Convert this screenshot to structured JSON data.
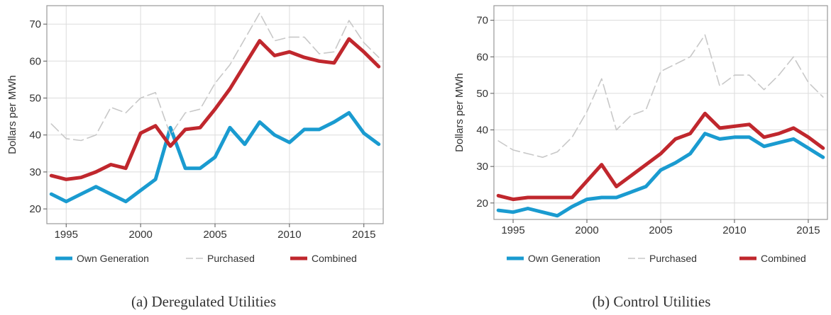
{
  "colors": {
    "own_generation": "#1a9bd0",
    "purchased": "#c8c8c8",
    "combined": "#c0272d",
    "grid": "#dcdcdc",
    "frame": "#9a9a9a"
  },
  "chart_data": [
    {
      "type": "line",
      "caption": "(a) Deregulated Utilities",
      "ylabel": "Dollars per MWh",
      "xlim": [
        1993.7,
        2016.3
      ],
      "ylim": [
        16,
        75
      ],
      "xticks": [
        1995,
        2000,
        2005,
        2010,
        2015
      ],
      "xtick_labels": [
        "1995",
        "2000",
        "2005",
        "2010",
        "2015"
      ],
      "yticks": [
        20,
        30,
        40,
        50,
        60,
        70
      ],
      "ytick_labels": [
        "20",
        "30",
        "40",
        "50",
        "60",
        "70"
      ],
      "grid": true,
      "legend": "bottom",
      "x": [
        1994,
        1995,
        1996,
        1997,
        1998,
        1999,
        2000,
        2001,
        2002,
        2003,
        2004,
        2005,
        2006,
        2007,
        2008,
        2009,
        2010,
        2011,
        2012,
        2013,
        2014,
        2015,
        2016
      ],
      "series": [
        {
          "name": "Own Generation",
          "style": "solid-thick",
          "values": [
            24,
            22,
            24,
            26,
            24,
            22,
            25,
            28,
            42,
            31,
            31,
            34,
            42,
            37.5,
            43.5,
            40,
            38,
            41.5,
            41.5,
            43.5,
            46,
            40.5,
            37.5
          ]
        },
        {
          "name": "Purchased",
          "style": "dashed-thin",
          "values": [
            43,
            39,
            38.5,
            40,
            47.5,
            46,
            50,
            51.5,
            40,
            46,
            47,
            54,
            59,
            66,
            73,
            65.5,
            66.5,
            66.5,
            62,
            62.5,
            71,
            65,
            61
          ]
        },
        {
          "name": "Combined",
          "style": "solid-thick",
          "values": [
            29,
            28,
            28.5,
            30,
            32,
            31,
            40.5,
            42.5,
            37,
            41.5,
            42,
            47,
            52.5,
            59,
            65.5,
            61.5,
            62.5,
            61,
            60,
            59.5,
            66,
            62.5,
            58.5
          ]
        }
      ]
    },
    {
      "type": "line",
      "caption": "(b) Control Utilities",
      "ylabel": "Dollars per MWh",
      "xlim": [
        1993.7,
        2016.3
      ],
      "ylim": [
        15.5,
        74
      ],
      "xticks": [
        1995,
        2000,
        2005,
        2010,
        2015
      ],
      "xtick_labels": [
        "1995",
        "2000",
        "2005",
        "2010",
        "2015"
      ],
      "yticks": [
        20,
        30,
        40,
        50,
        60,
        70
      ],
      "ytick_labels": [
        "20",
        "30",
        "40",
        "50",
        "60",
        "70"
      ],
      "grid": true,
      "legend": "bottom",
      "x": [
        1994,
        1995,
        1996,
        1997,
        1998,
        1999,
        2000,
        2001,
        2002,
        2003,
        2004,
        2005,
        2006,
        2007,
        2008,
        2009,
        2010,
        2011,
        2012,
        2013,
        2014,
        2015,
        2016
      ],
      "series": [
        {
          "name": "Own Generation",
          "style": "solid-thick",
          "values": [
            18,
            17.5,
            18.5,
            17.5,
            16.5,
            19,
            21,
            21.5,
            21.5,
            23,
            24.5,
            29,
            31,
            33.5,
            39,
            37.5,
            38,
            38,
            35.5,
            36.5,
            37.5,
            35,
            32.5
          ]
        },
        {
          "name": "Purchased",
          "style": "dashed-thin",
          "values": [
            37,
            34.5,
            33.5,
            32.5,
            34,
            38,
            45,
            54,
            40,
            44,
            45.5,
            56,
            58,
            60,
            66,
            52,
            55,
            55,
            51,
            55,
            60,
            53,
            49
          ]
        },
        {
          "name": "Combined",
          "style": "solid-thick",
          "values": [
            22,
            21,
            21.5,
            21.5,
            21.5,
            21.5,
            26,
            30.5,
            24.5,
            27.5,
            30.5,
            33.5,
            37.5,
            39,
            44.5,
            40.5,
            41,
            41.5,
            38,
            39,
            40.5,
            38,
            35
          ]
        }
      ]
    }
  ]
}
